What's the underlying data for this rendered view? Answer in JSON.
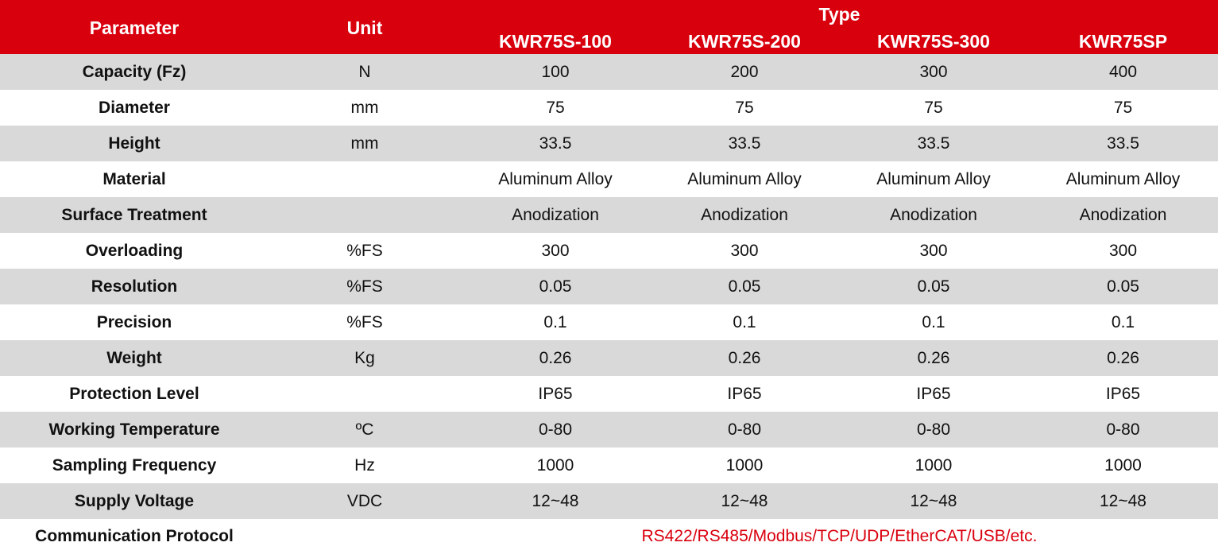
{
  "header": {
    "parameter": "Parameter",
    "unit": "Unit",
    "type": "Type",
    "models": [
      "KWR75S-100",
      "KWR75S-200",
      "KWR75S-300",
      "KWR75SP"
    ]
  },
  "rows": [
    {
      "parameter": "Capacity (Fz)",
      "unit": "N",
      "values": [
        "100",
        "200",
        "300",
        "400"
      ]
    },
    {
      "parameter": "Diameter",
      "unit": "mm",
      "values": [
        "75",
        "75",
        "75",
        "75"
      ]
    },
    {
      "parameter": "Height",
      "unit": "mm",
      "values": [
        "33.5",
        "33.5",
        "33.5",
        "33.5"
      ]
    },
    {
      "parameter": "Material",
      "unit": null,
      "values": [
        "Aluminum Alloy",
        "Aluminum Alloy",
        "Aluminum Alloy",
        "Aluminum Alloy"
      ]
    },
    {
      "parameter": "Surface Treatment",
      "unit": null,
      "values": [
        "Anodization",
        "Anodization",
        "Anodization",
        "Anodization"
      ]
    },
    {
      "parameter": "Overloading",
      "unit": "%FS",
      "values": [
        "300",
        "300",
        "300",
        "300"
      ]
    },
    {
      "parameter": "Resolution",
      "unit": "%FS",
      "values": [
        "0.05",
        "0.05",
        "0.05",
        "0.05"
      ]
    },
    {
      "parameter": "Precision",
      "unit": "%FS",
      "values": [
        "0.1",
        "0.1",
        "0.1",
        "0.1"
      ]
    },
    {
      "parameter": "Weight",
      "unit": "Kg",
      "values": [
        "0.26",
        "0.26",
        "0.26",
        "0.26"
      ]
    },
    {
      "parameter": "Protection Level",
      "unit": null,
      "values": [
        "IP65",
        "IP65",
        "IP65",
        "IP65"
      ]
    },
    {
      "parameter": "Working Temperature",
      "unit": "ºC",
      "values": [
        "0-80",
        "0-80",
        "0-80",
        "0-80"
      ]
    },
    {
      "parameter": "Sampling Frequency",
      "unit": "Hz",
      "values": [
        "1000",
        "1000",
        "1000",
        "1000"
      ]
    },
    {
      "parameter": "Supply Voltage",
      "unit": "VDC",
      "values": [
        "12~48",
        "12~48",
        "12~48",
        "12~48"
      ]
    }
  ],
  "protocol": {
    "parameter": "Communication Protocol",
    "value": "RS422/RS485/Modbus/TCP/UDP/EtherCAT/USB/etc."
  }
}
